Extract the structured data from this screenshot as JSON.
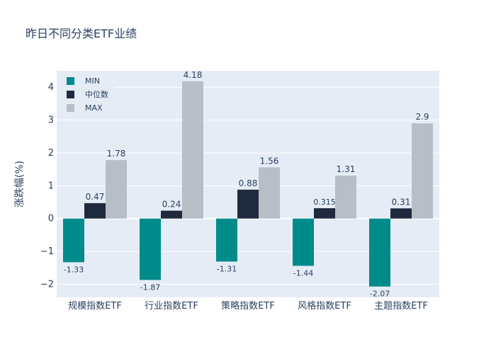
{
  "chart_data": {
    "type": "bar",
    "title": "昨日不同分类ETF业绩",
    "ylabel": "涨跌幅(%)",
    "xlabel": "",
    "categories": [
      "规模指数ETF",
      "行业指数ETF",
      "策略指数ETF",
      "风格指数ETF",
      "主题指数ETF"
    ],
    "series": [
      {
        "name": "MIN",
        "values": [
          -1.33,
          -1.87,
          -1.31,
          -1.44,
          -2.07
        ],
        "labels": [
          "-1.33",
          "-1.87",
          "-1.31",
          "-1.44",
          "-2.07"
        ],
        "color": "#008b8b"
      },
      {
        "name": "中位数",
        "values": [
          0.47,
          0.24,
          0.88,
          0.315,
          0.31
        ],
        "labels": [
          "0.47",
          "0.24",
          "0.88",
          "0.315",
          "0.31"
        ],
        "color": "#1f2a3e"
      },
      {
        "name": "MAX",
        "values": [
          1.78,
          4.18,
          1.56,
          1.31,
          2.9
        ],
        "labels": [
          "1.78",
          "4.18",
          "1.56",
          "1.31",
          "2.9"
        ],
        "color": "#b7bec6"
      }
    ],
    "yticks": [
      -2,
      -1,
      0,
      1,
      2,
      3,
      4
    ],
    "ytick_labels": [
      "−2",
      "−1",
      "0",
      "1",
      "2",
      "3",
      "4"
    ],
    "ylim": [
      -2.4,
      4.5
    ],
    "grid": true,
    "legend_position": "top-left",
    "plot_background": "#e5ecf6"
  }
}
